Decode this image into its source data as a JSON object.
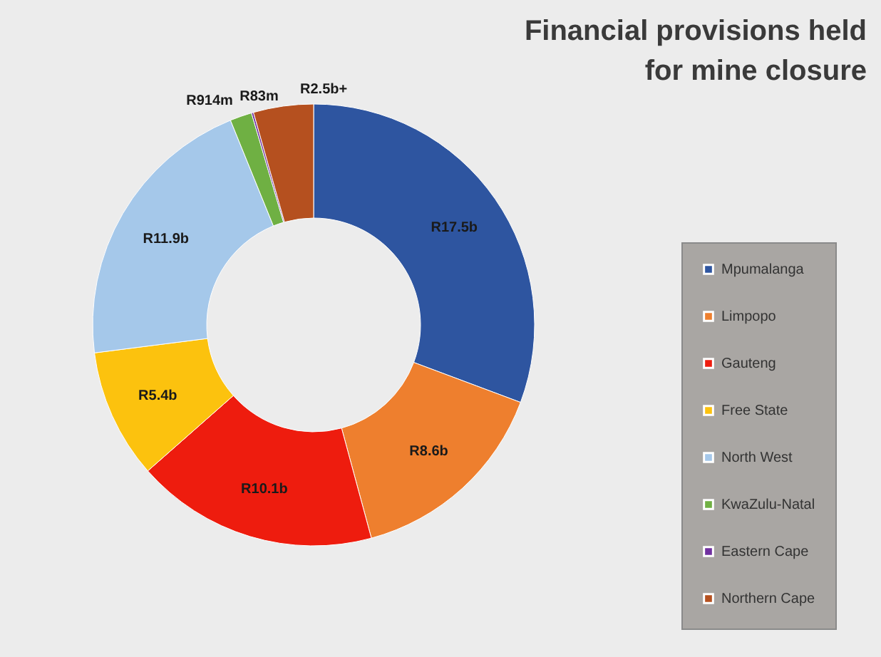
{
  "chart_data": {
    "type": "donut",
    "title": "Financial provisions held for mine closure",
    "categories": [
      "Mpumalanga",
      "Limpopo",
      "Gauteng",
      "Free State",
      "North West",
      "KwaZulu-Natal",
      "Eastern Cape",
      "Northern Cape"
    ],
    "values": [
      30.7,
      15.09,
      17.72,
      9.47,
      20.88,
      1.6,
      0.15,
      4.39
    ],
    "value_labels": [
      "R17.5b",
      "R8.6b",
      "R10.1b",
      "R5.4b",
      "R11.9b",
      "R914m",
      "R83m",
      "R2.5b+"
    ],
    "colors": [
      "#2e55a0",
      "#ee7f2e",
      "#ee1c0e",
      "#fcc20e",
      "#a5c8ea",
      "#6fb043",
      "#7030a0",
      "#b5501f"
    ],
    "legend": "right"
  }
}
